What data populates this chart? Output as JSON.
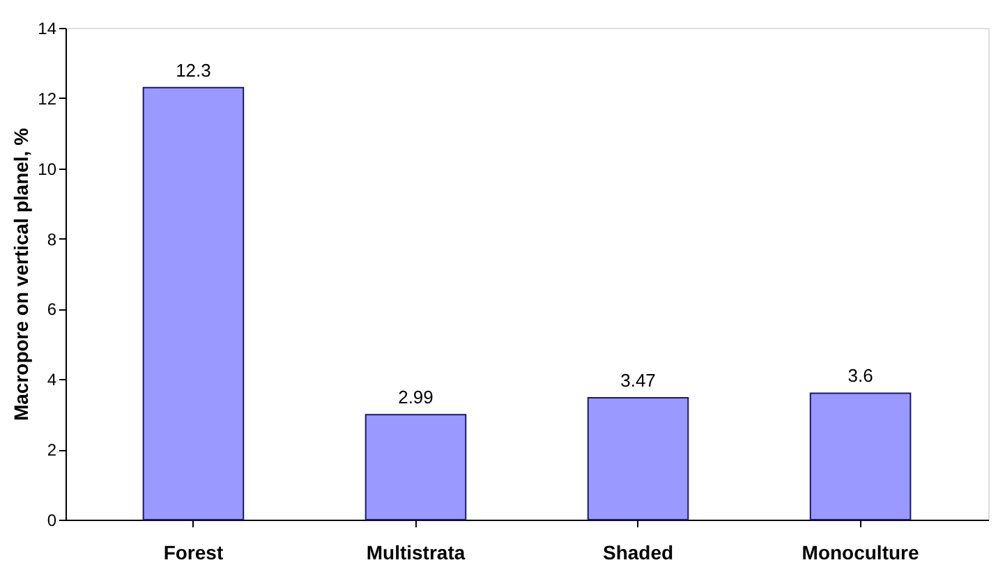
{
  "chart_data": {
    "type": "bar",
    "ylabel": "Macropore on vertical planel, %",
    "categories": [
      "Forest",
      "Multistrata",
      "Shaded",
      "Monoculture"
    ],
    "values": [
      12.3,
      2.99,
      3.47,
      3.6
    ],
    "color": "#9999ff",
    "ylim": [
      0,
      14
    ],
    "yticks": [
      0,
      2,
      4,
      6,
      8,
      10,
      12,
      14
    ],
    "grid": false,
    "data_labels": true
  }
}
